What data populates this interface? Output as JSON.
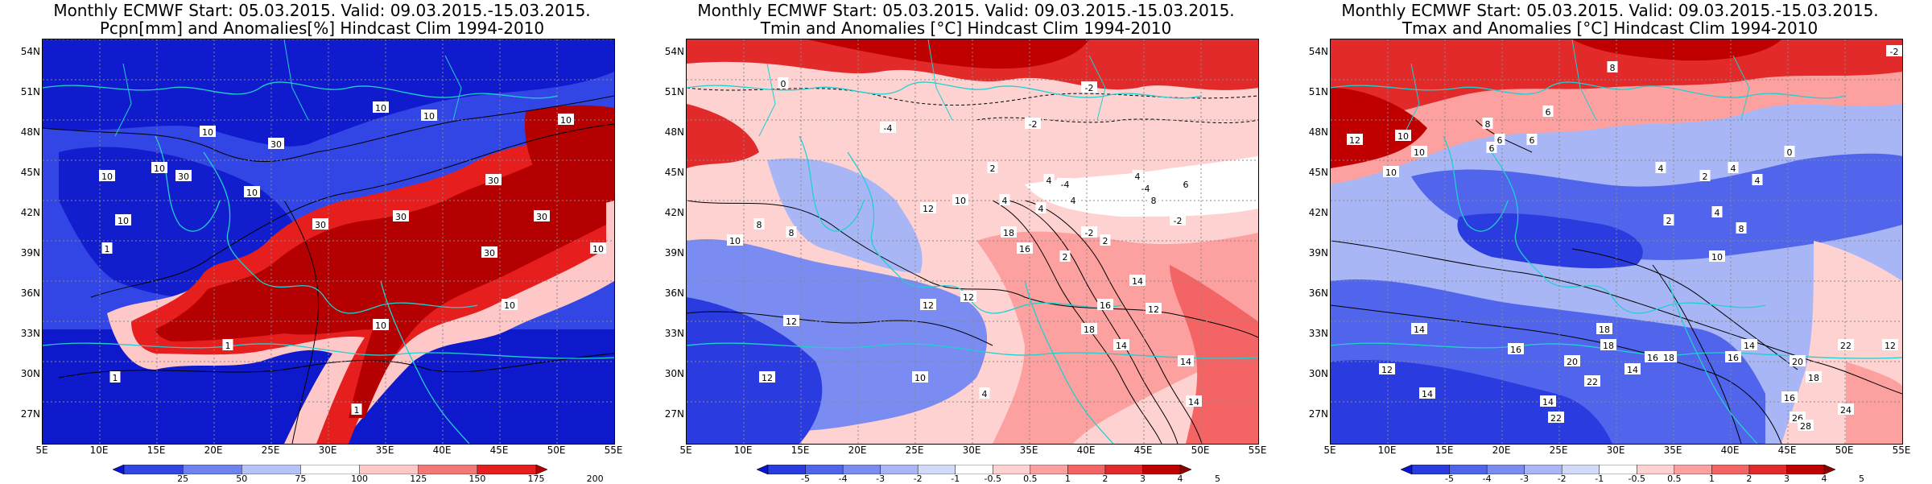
{
  "panels": [
    {
      "title_line1": "Monthly ECMWF Start: 05.03.2015. Valid: 09.03.2015.-15.03.2015.",
      "title_line2": "Pcpn[mm] and Anomalies[%] Hindcast Clim 1994-2010",
      "colorbar_labels": [
        "25",
        "50",
        "75",
        "100",
        "125",
        "150",
        "175",
        "200"
      ],
      "colorbar_colors": [
        "#0a14c8",
        "#3246e6",
        "#6e82f0",
        "#b4c3f8",
        "#ffffff",
        "#ffc8c8",
        "#f57878",
        "#e61e1e",
        "#b40000"
      ],
      "contour_labels": [
        "10",
        "10",
        "10",
        "10",
        "10",
        "10",
        "10",
        "10",
        "10",
        "30",
        "30",
        "30",
        "30",
        "30",
        "30",
        "30",
        "10",
        "10",
        "1",
        "1",
        "1",
        "1"
      ]
    },
    {
      "title_line1": "Monthly ECMWF Start: 05.03.2015. Valid: 09.03.2015.-15.03.2015.",
      "title_line2": "Tmin and Anomalies [°C] Hindcast Clim 1994-2010",
      "colorbar_labels": [
        "-5",
        "-4",
        "-3",
        "-2",
        "-1",
        "-0.5",
        "0.5",
        "1",
        "2",
        "3",
        "4",
        "5"
      ],
      "colorbar_colors": [
        "#0a14c8",
        "#2a3ce0",
        "#5064ec",
        "#7a8cf2",
        "#a8b6f6",
        "#d2dafa",
        "#ffffff",
        "#ffd2d2",
        "#fca0a0",
        "#f46464",
        "#e22a2a",
        "#c00000",
        "#8c0000"
      ],
      "contour_labels": [
        "0",
        "-2",
        "-2",
        "-4",
        "-4",
        "-4",
        "-2",
        "-2",
        "6",
        "4",
        "2",
        "4",
        "4",
        "8",
        "8",
        "10",
        "12",
        "12",
        "4",
        "12",
        "12",
        "10",
        "12",
        "14",
        "14",
        "8",
        "14",
        "2",
        "2",
        "4",
        "4",
        "18",
        "16",
        "10",
        "12",
        "16",
        "14",
        "18"
      ]
    },
    {
      "title_line1": "Monthly ECMWF Start: 05.03.2015. Valid: 09.03.2015.-15.03.2015.",
      "title_line2": "Tmax and Anomalies [°C] Hindcast Clim 1994-2010",
      "colorbar_labels": [
        "-5",
        "-4",
        "-3",
        "-2",
        "-1",
        "-0.5",
        "0.5",
        "1",
        "2",
        "3",
        "4",
        "5"
      ],
      "colorbar_colors": [
        "#0a14c8",
        "#2a3ce0",
        "#5064ec",
        "#7a8cf2",
        "#a8b6f6",
        "#d2dafa",
        "#ffffff",
        "#ffd2d2",
        "#fca0a0",
        "#f46464",
        "#e22a2a",
        "#c00000",
        "#8c0000"
      ],
      "contour_labels": [
        "6",
        "8",
        "-2",
        "12",
        "10",
        "10",
        "10",
        "8",
        "6",
        "6",
        "6",
        "4",
        "4",
        "2",
        "0",
        "4",
        "8",
        "4",
        "14",
        "12",
        "14",
        "16",
        "18",
        "18",
        "20",
        "22",
        "14",
        "16",
        "18",
        "16",
        "14",
        "20",
        "22",
        "18",
        "16",
        "14",
        "22",
        "24",
        "26",
        "28",
        "12",
        "2",
        "10"
      ]
    }
  ],
  "lat_labels": [
    "54N",
    "51N",
    "48N",
    "45N",
    "42N",
    "39N",
    "36N",
    "33N",
    "30N",
    "27N"
  ],
  "lon_labels": [
    "5E",
    "10E",
    "15E",
    "20E",
    "25E",
    "30E",
    "35E",
    "40E",
    "45E",
    "50E",
    "55E"
  ]
}
